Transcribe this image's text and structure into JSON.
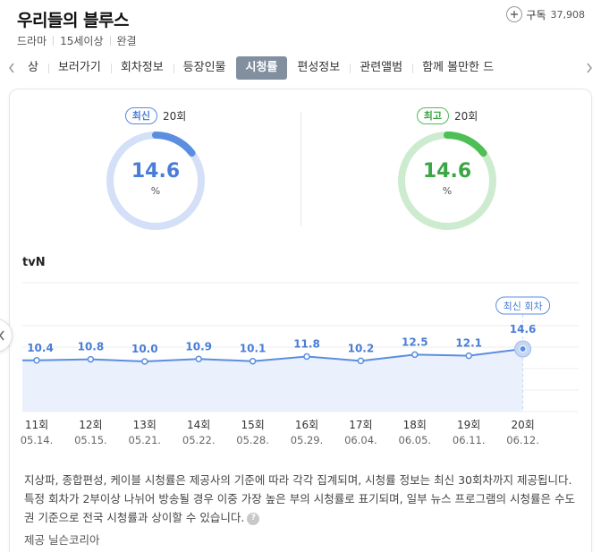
{
  "header": {
    "title": "우리들의 블루스",
    "meta": [
      "드라마",
      "15세이상",
      "완결"
    ],
    "subscribe_label": "구독",
    "subscribe_count": "37,908"
  },
  "tabs": [
    {
      "label": "상",
      "active": false
    },
    {
      "label": "보러가기",
      "active": false
    },
    {
      "label": "회차정보",
      "active": false
    },
    {
      "label": "등장인물",
      "active": false
    },
    {
      "label": "시청률",
      "active": true
    },
    {
      "label": "편성정보",
      "active": false
    },
    {
      "label": "관련앨범",
      "active": false
    },
    {
      "label": "함께 볼만한 드",
      "active": false
    }
  ],
  "gauges": {
    "latest": {
      "badge": "최신",
      "episode": "20회",
      "value": "14.6",
      "unit": "%",
      "fraction": 0.146,
      "color": "#5b8ee0",
      "track": "#d4e0f7"
    },
    "best": {
      "badge": "최고",
      "episode": "20회",
      "value": "14.6",
      "unit": "%",
      "fraction": 0.146,
      "color": "#4dbf55",
      "track": "#cdeccf"
    }
  },
  "chart_data": {
    "type": "line",
    "network": "tvN",
    "series": [
      {
        "values": [
          10.4,
          10.8,
          10.0,
          10.9,
          10.1,
          11.8,
          10.2,
          12.5,
          12.1,
          14.6
        ]
      }
    ],
    "episodes": [
      "11회",
      "12회",
      "13회",
      "14회",
      "15회",
      "16회",
      "17회",
      "18회",
      "19회",
      "20회"
    ],
    "dates": [
      "05.14.",
      "05.15.",
      "05.21.",
      "05.22.",
      "05.28.",
      "05.29.",
      "06.04.",
      "06.05.",
      "06.11.",
      "06.12."
    ],
    "value_labels": [
      "10.4",
      "10.8",
      "10.0",
      "10.9",
      "10.1",
      "11.8",
      "10.2",
      "12.5",
      "12.1",
      "14.6"
    ],
    "latest_tag": "최신 회차",
    "line_color": "#5b8ee0",
    "fill_color": "#eaf1fc"
  },
  "note": "지상파, 종합편성, 케이블 시청률은 제공사의 기준에 따라 각각 집계되며, 시청률 정보는 최신 30회차까지 제공됩니다. 특정 회차가 2부이상 나뉘어 방송될 경우 이중 가장 높은 부의 시청률로 표기되며, 일부 뉴스 프로그램의 시청률은 수도권 기준으로 전국 시청률과 상이할 수 있습니다.",
  "help_glyph": "?",
  "source": "제공 닐슨코리아",
  "icons": {
    "prev_tab": "chevron-left-icon",
    "next_tab": "chevron-right-icon",
    "plus": "plus-icon",
    "help": "help-icon",
    "side_prev": "chevron-left-icon"
  }
}
